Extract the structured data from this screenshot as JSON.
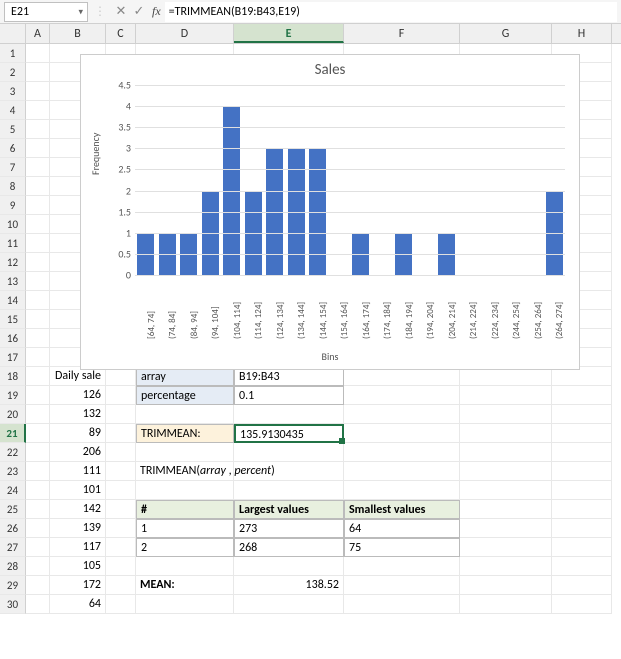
{
  "formula_bar": {
    "cell_ref": "E21",
    "formula": "=TRIMMEAN(B19:B43,E19)",
    "cancel": "✕",
    "confirm": "✓",
    "fx": "fx"
  },
  "columns": [
    "A",
    "B",
    "C",
    "D",
    "E",
    "F",
    "G",
    "H"
  ],
  "selected_col": "E",
  "selected_row": "21",
  "daily_sale_header": "Daily sale",
  "daily_sales": [
    "126",
    "132",
    "89",
    "206",
    "111",
    "101",
    "142",
    "139",
    "117",
    "105",
    "172",
    "64"
  ],
  "params": {
    "array_label": "array",
    "array_value": "B19:B43",
    "percent_label": "percentage",
    "percent_value": "0.1"
  },
  "trimmean": {
    "label": "TRIMMEAN:",
    "value": "135.9130435"
  },
  "syntax": {
    "func": "TRIMMEAN(",
    "arg1": "array",
    "sep": " , ",
    "arg2": "percent",
    "close": ")"
  },
  "values_table": {
    "h1": "#",
    "h2": "Largest values",
    "h3": "Smallest values",
    "rows": [
      {
        "n": "1",
        "l": "273",
        "s": "64"
      },
      {
        "n": "2",
        "l": "268",
        "s": "75"
      }
    ]
  },
  "mean": {
    "label": "MEAN:",
    "value": "138.52"
  },
  "chart": {
    "title": "Sales",
    "ylabel": "Frequency",
    "xlabel": "Bins",
    "ymax": 4.5,
    "ytick_step": 0.5,
    "bar_color": "#4472c4",
    "grid_color": "#e0e0e0",
    "categories": [
      "[64, 74]",
      "(74, 84]",
      "(84, 94]",
      "(94, 104]",
      "(104, 114]",
      "(114, 124]",
      "(124, 134]",
      "(134, 144]",
      "(144, 154]",
      "(154, 164]",
      "(164, 174]",
      "(174, 184]",
      "(184, 194]",
      "(194, 204]",
      "(204, 214]",
      "(214, 224]",
      "(224, 234]",
      "(244, 254]",
      "(254, 264]",
      "(264, 274]"
    ],
    "values": [
      1,
      1,
      1,
      2,
      4,
      2,
      3,
      3,
      3,
      0,
      1,
      0,
      1,
      0,
      1,
      0,
      0,
      0,
      0,
      2
    ]
  }
}
